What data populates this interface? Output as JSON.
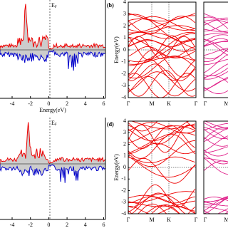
{
  "dos_top": {
    "fermi": "E",
    "fermi_sub": "F",
    "xticks": [
      "-4",
      "-2",
      "0",
      "2",
      "4",
      "6"
    ],
    "xlabel": "Energy(eV)"
  },
  "dos_bottom": {
    "fermi": "E",
    "fermi_sub": "F",
    "xticks": [
      "-4",
      "-2",
      "0",
      "2",
      "4",
      "6"
    ],
    "xlabel": "Energy(eV)"
  },
  "band_top": {
    "label": "(b)",
    "ylabel": "Energy(eV)",
    "yticks": [
      "4",
      "3",
      "2",
      "1",
      "0",
      "-1",
      "-2",
      "-3",
      "-4"
    ],
    "kpoints": [
      "Γ",
      "M",
      "K",
      "Γ"
    ],
    "kpoints2": [
      "Γ",
      "M"
    ]
  },
  "band_bottom": {
    "label": "(d)",
    "ylabel": "Energy(eV)",
    "yticks": [
      "4",
      "3",
      "2",
      "1",
      "0",
      "-1",
      "-2",
      "-3",
      "-4"
    ],
    "kpoints": [
      "Γ",
      "M",
      "K",
      "Γ"
    ],
    "kpoints2": [
      "Γ",
      "M"
    ]
  }
}
